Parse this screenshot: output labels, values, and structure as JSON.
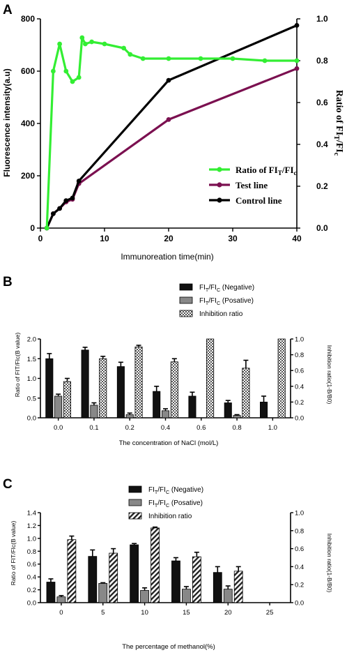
{
  "panels": {
    "A": {
      "letter": "A"
    },
    "B": {
      "letter": "B"
    },
    "C": {
      "letter": "C"
    }
  },
  "chart_data": [
    {
      "id": "A",
      "type": "line",
      "xlabel": "Immunoreation time(min)",
      "ylabel": "Fluorescence intensity(a.u)",
      "y2label_prefix": "Ratio of FI",
      "y2label_sub1": "T",
      "y2label_mid": "/FI",
      "y2label_sub2": "c",
      "xlim": [
        0,
        40
      ],
      "xticks": [
        "0",
        "10",
        "20",
        "30",
        "40"
      ],
      "ylim": [
        0,
        800
      ],
      "yticks": [
        "0",
        "200",
        "400",
        "600",
        "800"
      ],
      "y2lim": [
        0,
        1.0
      ],
      "y2ticks": [
        "0.0",
        "0.2",
        "0.4",
        "0.6",
        "0.8",
        "1.0"
      ],
      "legend": [
        {
          "main": "Ratio of FI",
          "sub1": "T",
          "mid": "/FI",
          "sub2": "c",
          "color": "#33ee33"
        },
        {
          "main": "Test line",
          "color": "#7b1050"
        },
        {
          "main": "Control line",
          "color": "#000000"
        }
      ],
      "series": [
        {
          "name": "Test line",
          "axis": "left",
          "color": "#7b1050",
          "x": [
            1,
            2,
            3,
            4,
            5,
            6,
            20,
            40
          ],
          "y": [
            0,
            55,
            75,
            100,
            110,
            170,
            415,
            610
          ]
        },
        {
          "name": "Control line",
          "axis": "left",
          "color": "#000000",
          "x": [
            1,
            2,
            3,
            4,
            5,
            6,
            20,
            40
          ],
          "y": [
            0,
            55,
            75,
            105,
            115,
            180,
            565,
            775
          ]
        },
        {
          "name": "Ratio of FIT/FIc",
          "axis": "right",
          "color": "#33ee33",
          "x": [
            1,
            2,
            3,
            4,
            5,
            6,
            6.5,
            7,
            8,
            10,
            13,
            14,
            16,
            20,
            25,
            30,
            35,
            40
          ],
          "y": [
            0,
            0.75,
            0.88,
            0.75,
            0.7,
            0.72,
            0.91,
            0.88,
            0.89,
            0.88,
            0.86,
            0.83,
            0.81,
            0.81,
            0.81,
            0.81,
            0.8,
            0.8
          ]
        }
      ]
    },
    {
      "id": "B",
      "type": "bar",
      "xlabel": "The concentration of NaCl (mol/L)",
      "ylabel": "Ratio of FIT/FIc(B value)",
      "y2label": "Inhibition ratio(1-B/B0)",
      "categories": [
        "0.0",
        "0.1",
        "0.2",
        "0.4",
        "0.6",
        "0.8",
        "1.0"
      ],
      "ylim": [
        0,
        2.0
      ],
      "yticks": [
        "0.0",
        "0.5",
        "1.0",
        "1.5",
        "2.0"
      ],
      "y2lim": [
        0,
        1.0
      ],
      "y2ticks": [
        "0.0",
        "0.2",
        "0.4",
        "0.6",
        "0.8",
        "1.0"
      ],
      "legend": [
        {
          "main": "FI",
          "sub1": "T",
          "mid": "/FI",
          "sub2": "C",
          "tail": " (Negative)"
        },
        {
          "main": "FI",
          "sub1": "T",
          "mid": "/FI",
          "sub2": "C",
          "tail": " (Posative)"
        },
        {
          "main": "Inhibition ratio"
        }
      ],
      "series": [
        {
          "name": "FIT/FIC (Negative)",
          "axis": "left",
          "values": [
            1.5,
            1.72,
            1.3,
            0.67,
            0.55,
            0.38,
            0.4
          ],
          "errors": [
            0.13,
            0.07,
            0.11,
            0.13,
            0.1,
            0.06,
            0.15
          ]
        },
        {
          "name": "FIT/FIC (Posative)",
          "axis": "left",
          "values": [
            0.55,
            0.32,
            0.08,
            0.18,
            0,
            0.06,
            0
          ],
          "errors": [
            0.05,
            0.06,
            0.04,
            0.05,
            0,
            0.02,
            0
          ]
        },
        {
          "name": "Inhibition ratio",
          "axis": "right",
          "values": [
            0.46,
            0.75,
            0.9,
            0.71,
            1.0,
            0.63,
            1.0
          ],
          "errors": [
            0.04,
            0.03,
            0.02,
            0.04,
            0,
            0.1,
            0
          ]
        }
      ]
    },
    {
      "id": "C",
      "type": "bar",
      "xlabel": "The percentage of methanol(%)",
      "ylabel": "Ratio of FIT/FIc(B value)",
      "y2label": "Inhibition ratio(1-B/B0)",
      "categories": [
        "0",
        "5",
        "10",
        "15",
        "20",
        "25"
      ],
      "ylim": [
        0,
        1.4
      ],
      "yticks": [
        "0.0",
        "0.2",
        "0.4",
        "0.6",
        "0.8",
        "1.0",
        "1.2",
        "1.4"
      ],
      "y2lim": [
        0,
        1.0
      ],
      "y2ticks": [
        "0.0",
        "0.2",
        "0.4",
        "0.6",
        "0.8",
        "1.0"
      ],
      "legend": [
        {
          "main": "FI",
          "sub1": "T",
          "mid": "/FI",
          "sub2": "C",
          "tail": " (Negative)"
        },
        {
          "main": "FI",
          "sub1": "T",
          "mid": "/FI",
          "sub2": "C",
          "tail": " (Posative)"
        },
        {
          "main": "Inhibition ratio"
        }
      ],
      "series": [
        {
          "name": "FIT/FIC (Negative)",
          "axis": "left",
          "values": [
            0.32,
            0.72,
            0.9,
            0.65,
            0.47,
            0
          ],
          "errors": [
            0.05,
            0.1,
            0.02,
            0.05,
            0.09,
            0
          ]
        },
        {
          "name": "FIT/FIC (Posative)",
          "axis": "left",
          "values": [
            0.09,
            0.3,
            0.19,
            0.21,
            0.21,
            0
          ],
          "errors": [
            0.02,
            0.01,
            0.04,
            0.04,
            0.05,
            0
          ]
        },
        {
          "name": "Inhibition ratio",
          "axis": "right",
          "values": [
            0.7,
            0.55,
            0.83,
            0.51,
            0.35,
            0
          ],
          "errors": [
            0.04,
            0.05,
            0.01,
            0.05,
            0.05,
            0
          ]
        }
      ]
    }
  ]
}
